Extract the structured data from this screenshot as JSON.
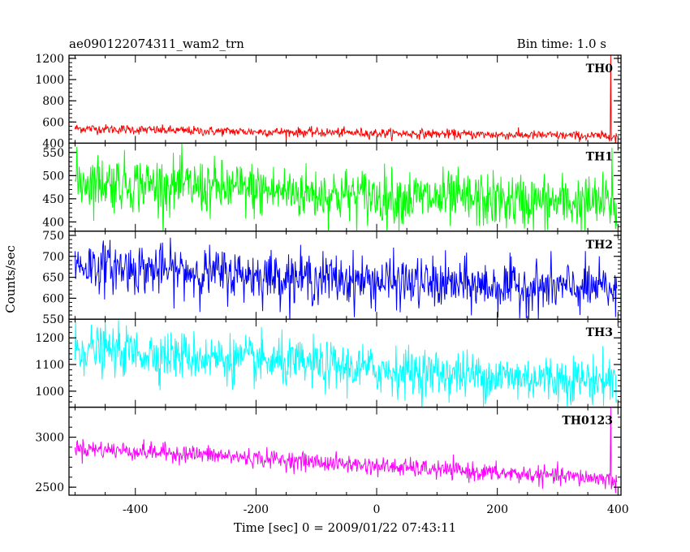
{
  "header": {
    "title": "ae090122074311_wam2_trn",
    "bin_time": "Bin time: 1.0 s"
  },
  "chart_data": {
    "type": "line",
    "xlabel": "Time [sec] 0 = 2009/01/22 07:43:11",
    "ylabel": "Counts/sec",
    "xlim": [
      -510,
      405
    ],
    "xticks": [
      -400,
      -200,
      0,
      200,
      400
    ],
    "x_start": -500,
    "x_end": 398,
    "bin_time_s": 1.0,
    "panels": [
      {
        "name": "TH0",
        "color": "#ff0000",
        "ylim": [
          400,
          1230
        ],
        "yticks": [
          400,
          600,
          800,
          1000,
          1200
        ],
        "trend": [
          [
            -500,
            540
          ],
          [
            -300,
            515
          ],
          [
            0,
            495
          ],
          [
            200,
            480
          ],
          [
            395,
            465
          ]
        ],
        "noise_sd": 22,
        "features": [
          {
            "x": 388,
            "y_peak": 1230,
            "y_dip": 420
          },
          {
            "x": 396,
            "y_dip": 400
          }
        ]
      },
      {
        "name": "TH1",
        "color": "#00ff00",
        "ylim": [
          380,
          570
        ],
        "yticks": [
          400,
          450,
          500,
          550
        ],
        "trend": [
          [
            -500,
            490
          ],
          [
            -300,
            475
          ],
          [
            0,
            455
          ],
          [
            200,
            445
          ],
          [
            395,
            440
          ]
        ],
        "noise_sd": 30,
        "features": [
          {
            "x": 390,
            "y_peak": 560
          },
          {
            "x": 396,
            "y_dip": 385
          }
        ]
      },
      {
        "name": "TH2",
        "color": "#0000ff",
        "ylim": [
          550,
          760
        ],
        "yticks": [
          550,
          600,
          650,
          700,
          750
        ],
        "trend": [
          [
            -500,
            680
          ],
          [
            -300,
            662
          ],
          [
            0,
            640
          ],
          [
            200,
            628
          ],
          [
            395,
            622
          ]
        ],
        "noise_sd": 30,
        "features": [
          {
            "x": 396,
            "y_dip": 555
          }
        ]
      },
      {
        "name": "TH3",
        "color": "#00ffff",
        "ylim": [
          940,
          1270
        ],
        "yticks": [
          1000,
          1100,
          1200
        ],
        "trend": [
          [
            -500,
            1160
          ],
          [
            -300,
            1130
          ],
          [
            0,
            1080
          ],
          [
            200,
            1055
          ],
          [
            395,
            1040
          ]
        ],
        "noise_sd": 45,
        "features": []
      },
      {
        "name": "TH0123",
        "color": "#ff00ff",
        "ylim": [
          2420,
          3300
        ],
        "yticks": [
          2500,
          3000
        ],
        "trend": [
          [
            -500,
            2890
          ],
          [
            -300,
            2830
          ],
          [
            0,
            2710
          ],
          [
            200,
            2640
          ],
          [
            395,
            2580
          ]
        ],
        "noise_sd": 45,
        "features": [
          {
            "x": 388,
            "y_peak": 3300,
            "y_dip": 2480
          },
          {
            "x": 396,
            "y_dip": 2440
          }
        ]
      }
    ]
  }
}
